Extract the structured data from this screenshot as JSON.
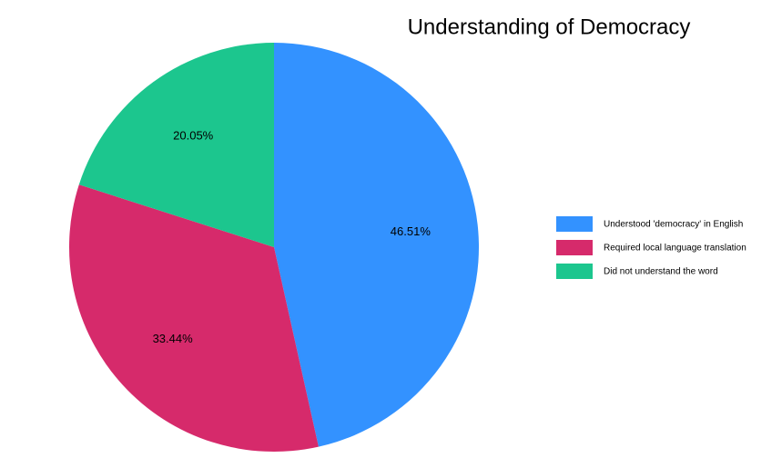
{
  "chart_data": {
    "type": "pie",
    "title": "Understanding of Democracy",
    "categories": [
      "Understood 'democracy' in English",
      "Required local language translation",
      "Did not understand the word"
    ],
    "values": [
      46.51,
      33.44,
      20.05
    ],
    "value_labels": [
      "46.51%",
      "33.44%",
      "20.05%"
    ],
    "colors": [
      "#3392ff",
      "#d62a6b",
      "#1cc68e"
    ],
    "legend": "right"
  }
}
